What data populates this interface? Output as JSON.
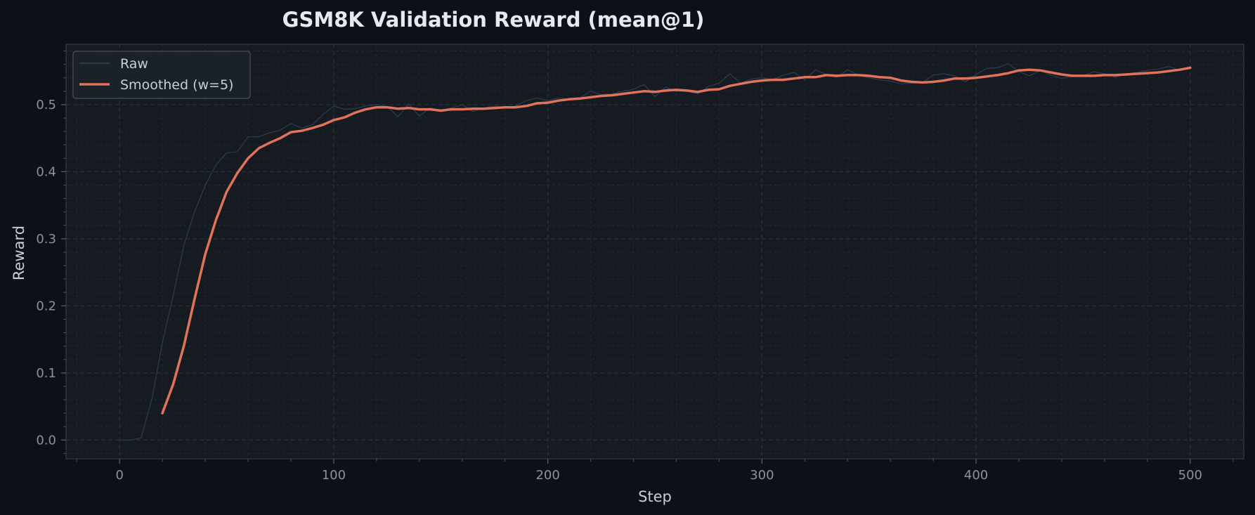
{
  "chart_data": {
    "type": "line",
    "title": "GSM8K Validation Reward (mean@1)",
    "xlabel": "Step",
    "ylabel": "Reward",
    "xlim": [
      -25,
      525
    ],
    "ylim": [
      -0.028,
      0.59
    ],
    "xticks": [
      0,
      100,
      200,
      300,
      400,
      500
    ],
    "yticks": [
      0.0,
      0.1,
      0.2,
      0.3,
      0.4,
      0.5
    ],
    "grid": true,
    "legend_position": "top-left",
    "series": [
      {
        "name": "Raw",
        "color": "#2e3d52",
        "x": [
          0,
          5,
          10,
          15,
          20,
          25,
          30,
          35,
          40,
          45,
          50,
          55,
          60,
          65,
          70,
          75,
          80,
          85,
          90,
          95,
          100,
          105,
          110,
          115,
          120,
          125,
          130,
          135,
          140,
          145,
          150,
          155,
          160,
          165,
          170,
          175,
          180,
          185,
          190,
          195,
          200,
          205,
          210,
          215,
          220,
          225,
          230,
          235,
          240,
          245,
          250,
          255,
          260,
          265,
          270,
          275,
          280,
          285,
          290,
          295,
          300,
          305,
          310,
          315,
          320,
          325,
          330,
          335,
          340,
          345,
          350,
          355,
          360,
          365,
          370,
          375,
          380,
          385,
          390,
          395,
          400,
          405,
          410,
          415,
          420,
          425,
          430,
          435,
          440,
          445,
          450,
          455,
          460,
          465,
          470,
          475,
          480,
          485,
          490,
          495,
          500
        ],
        "values": [
          0.0,
          0.0,
          0.003,
          0.06,
          0.145,
          0.215,
          0.29,
          0.34,
          0.38,
          0.41,
          0.428,
          0.43,
          0.452,
          0.452,
          0.458,
          0.462,
          0.472,
          0.465,
          0.47,
          0.485,
          0.498,
          0.493,
          0.494,
          0.498,
          0.5,
          0.497,
          0.482,
          0.501,
          0.483,
          0.495,
          0.492,
          0.495,
          0.5,
          0.49,
          0.495,
          0.498,
          0.495,
          0.498,
          0.506,
          0.51,
          0.506,
          0.51,
          0.508,
          0.51,
          0.52,
          0.515,
          0.516,
          0.52,
          0.523,
          0.53,
          0.512,
          0.526,
          0.52,
          0.52,
          0.516,
          0.527,
          0.532,
          0.546,
          0.532,
          0.538,
          0.54,
          0.537,
          0.544,
          0.548,
          0.537,
          0.552,
          0.545,
          0.541,
          0.552,
          0.544,
          0.54,
          0.537,
          0.535,
          0.531,
          0.532,
          0.533,
          0.544,
          0.546,
          0.543,
          0.534,
          0.545,
          0.554,
          0.555,
          0.561,
          0.549,
          0.543,
          0.551,
          0.544,
          0.539,
          0.542,
          0.543,
          0.549,
          0.546,
          0.541,
          0.546,
          0.548,
          0.551,
          0.553,
          0.557,
          0.551,
          0.556
        ]
      },
      {
        "name": "Smoothed (w=5)",
        "color": "#e0735a",
        "x": [
          20,
          25,
          30,
          35,
          40,
          45,
          50,
          55,
          60,
          65,
          70,
          75,
          80,
          85,
          90,
          95,
          100,
          105,
          110,
          115,
          120,
          125,
          130,
          135,
          140,
          145,
          150,
          155,
          160,
          165,
          170,
          175,
          180,
          185,
          190,
          195,
          200,
          205,
          210,
          215,
          220,
          225,
          230,
          235,
          240,
          245,
          250,
          255,
          260,
          265,
          270,
          275,
          280,
          285,
          290,
          295,
          300,
          305,
          310,
          315,
          320,
          325,
          330,
          335,
          340,
          345,
          350,
          355,
          360,
          365,
          370,
          375,
          380,
          385,
          390,
          395,
          400,
          405,
          410,
          415,
          420,
          425,
          430,
          435,
          440,
          445,
          450,
          455,
          460,
          465,
          470,
          475,
          480,
          485,
          490,
          495,
          500
        ],
        "values": [
          0.04,
          0.083,
          0.14,
          0.21,
          0.277,
          0.328,
          0.37,
          0.398,
          0.42,
          0.435,
          0.443,
          0.45,
          0.459,
          0.461,
          0.465,
          0.47,
          0.477,
          0.481,
          0.488,
          0.493,
          0.496,
          0.496,
          0.494,
          0.495,
          0.493,
          0.493,
          0.491,
          0.493,
          0.493,
          0.494,
          0.494,
          0.495,
          0.496,
          0.496,
          0.498,
          0.502,
          0.503,
          0.506,
          0.508,
          0.509,
          0.511,
          0.513,
          0.514,
          0.516,
          0.518,
          0.52,
          0.519,
          0.521,
          0.522,
          0.521,
          0.519,
          0.522,
          0.523,
          0.528,
          0.531,
          0.534,
          0.536,
          0.537,
          0.537,
          0.539,
          0.541,
          0.541,
          0.544,
          0.543,
          0.544,
          0.544,
          0.543,
          0.541,
          0.54,
          0.536,
          0.534,
          0.533,
          0.534,
          0.536,
          0.539,
          0.539,
          0.54,
          0.542,
          0.544,
          0.547,
          0.551,
          0.552,
          0.551,
          0.548,
          0.545,
          0.543,
          0.543,
          0.543,
          0.544,
          0.544,
          0.545,
          0.546,
          0.547,
          0.548,
          0.55,
          0.552,
          0.555
        ]
      }
    ]
  }
}
